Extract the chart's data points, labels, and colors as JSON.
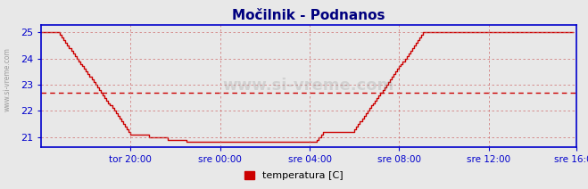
{
  "title": "Močilnik - Podnanos",
  "title_color": "#00007f",
  "title_fontsize": 11,
  "bg_color": "#e8e8e8",
  "plot_bg_color": "#e8e8e8",
  "line_color": "#cc0000",
  "axis_color": "#0000cc",
  "grid_color": "#cc6666",
  "mean_line_color": "#cc0000",
  "mean_value": 22.7,
  "ylim": [
    20.6,
    25.3
  ],
  "yticks": [
    21,
    22,
    23,
    24,
    25
  ],
  "xlim": [
    0,
    287
  ],
  "xtick_positions": [
    48,
    96,
    144,
    192,
    240,
    287
  ],
  "xtick_labels": [
    "tor 20:00",
    "sre 00:00",
    "sre 04:00",
    "sre 08:00",
    "sre 12:00",
    "sre 16:00"
  ],
  "watermark": "www.si-vreme.com",
  "side_label": "www.si-vreme.com",
  "legend_label": "temperatura [C]",
  "legend_color": "#cc0000",
  "temperature_data": [
    25.0,
    25.0,
    25.0,
    25.0,
    25.0,
    25.0,
    25.0,
    25.0,
    25.0,
    25.0,
    24.9,
    24.8,
    24.7,
    24.6,
    24.5,
    24.4,
    24.3,
    24.2,
    24.1,
    24.0,
    23.9,
    23.8,
    23.7,
    23.6,
    23.5,
    23.4,
    23.3,
    23.2,
    23.1,
    23.0,
    22.9,
    22.8,
    22.7,
    22.6,
    22.5,
    22.4,
    22.3,
    22.2,
    22.1,
    22.0,
    21.9,
    21.8,
    21.7,
    21.6,
    21.5,
    21.4,
    21.3,
    21.2,
    21.1,
    21.1,
    21.1,
    21.1,
    21.1,
    21.1,
    21.1,
    21.1,
    21.1,
    21.1,
    21.0,
    21.0,
    21.0,
    21.0,
    21.0,
    21.0,
    21.0,
    21.0,
    21.0,
    21.0,
    20.9,
    20.9,
    20.9,
    20.9,
    20.9,
    20.9,
    20.9,
    20.9,
    20.9,
    20.9,
    20.8,
    20.8,
    20.8,
    20.8,
    20.8,
    20.8,
    20.8,
    20.8,
    20.8,
    20.8,
    20.8,
    20.8,
    20.8,
    20.8,
    20.8,
    20.8,
    20.8,
    20.8,
    20.8,
    20.8,
    20.8,
    20.8,
    20.8,
    20.8,
    20.8,
    20.8,
    20.8,
    20.8,
    20.8,
    20.8,
    20.8,
    20.8,
    20.8,
    20.8,
    20.8,
    20.8,
    20.8,
    20.8,
    20.8,
    20.8,
    20.8,
    20.8,
    20.8,
    20.8,
    20.8,
    20.8,
    20.8,
    20.8,
    20.8,
    20.8,
    20.8,
    20.8,
    20.8,
    20.8,
    20.8,
    20.8,
    20.8,
    20.8,
    20.8,
    20.8,
    20.8,
    20.8,
    20.8,
    20.8,
    20.8,
    20.8,
    20.8,
    20.8,
    20.8,
    20.8,
    20.9,
    21.0,
    21.1,
    21.2,
    21.2,
    21.2,
    21.2,
    21.2,
    21.2,
    21.2,
    21.2,
    21.2,
    21.2,
    21.2,
    21.2,
    21.2,
    21.2,
    21.2,
    21.2,
    21.2,
    21.3,
    21.4,
    21.5,
    21.6,
    21.7,
    21.8,
    21.9,
    22.0,
    22.1,
    22.2,
    22.3,
    22.4,
    22.5,
    22.6,
    22.7,
    22.8,
    22.9,
    23.0,
    23.1,
    23.2,
    23.3,
    23.4,
    23.5,
    23.6,
    23.7,
    23.8,
    23.9,
    24.0,
    24.1,
    24.2,
    24.3,
    24.4,
    24.5,
    24.6,
    24.7,
    24.8,
    24.9,
    25.0,
    25.0,
    25.0,
    25.0,
    25.0,
    25.0,
    25.0,
    25.0,
    25.0,
    25.0,
    25.0,
    25.0,
    25.0,
    25.0,
    25.0,
    25.0,
    25.0,
    25.0,
    25.0,
    25.0,
    25.0,
    25.0,
    25.0,
    25.0,
    25.0,
    25.0,
    25.0,
    25.0,
    25.0,
    25.0,
    25.0,
    25.0,
    25.0,
    25.0,
    25.0,
    25.0,
    25.0,
    25.0,
    25.0,
    25.0,
    25.0,
    25.0,
    25.0,
    25.0,
    25.0,
    25.0,
    25.0,
    25.0,
    25.0,
    25.0,
    25.0,
    25.0,
    25.0,
    25.0,
    25.0,
    25.0,
    25.0,
    25.0,
    25.0,
    25.0,
    25.0,
    25.0,
    25.0,
    25.0,
    25.0,
    25.0,
    25.0,
    25.0,
    25.0,
    25.0,
    25.0,
    25.0,
    25.0,
    25.0,
    25.0,
    25.0,
    25.0,
    25.0,
    25.0,
    25.0,
    25.0
  ]
}
